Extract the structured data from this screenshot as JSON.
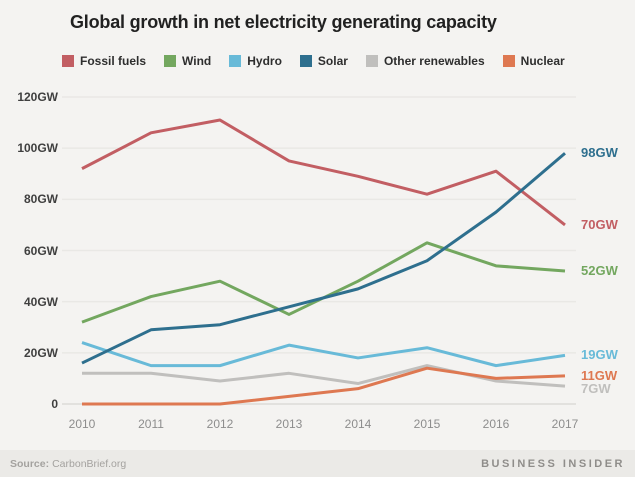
{
  "title": "Global growth in net electricity generating capacity",
  "footer": {
    "source_label": "Source:",
    "source_value": "CarbonBrief.org",
    "brand": "BUSINESS INSIDER"
  },
  "chart_data": {
    "type": "line",
    "title": "Global growth in net electricity generating capacity",
    "x": [
      2010,
      2011,
      2012,
      2013,
      2014,
      2015,
      2016,
      2017
    ],
    "series": [
      {
        "name": "Fossil fuels",
        "color": "#c25e63",
        "values": [
          92,
          106,
          111,
          95,
          89,
          82,
          91,
          70
        ],
        "end_label": "70GW"
      },
      {
        "name": "Wind",
        "color": "#73a75f",
        "values": [
          32,
          42,
          48,
          35,
          48,
          63,
          54,
          52
        ],
        "end_label": "52GW"
      },
      {
        "name": "Hydro",
        "color": "#68bad8",
        "values": [
          24,
          15,
          15,
          23,
          18,
          22,
          15,
          19
        ],
        "end_label": "19GW"
      },
      {
        "name": "Solar",
        "color": "#2e6f8e",
        "values": [
          16,
          29,
          31,
          38,
          45,
          56,
          75,
          98
        ],
        "end_label": "98GW"
      },
      {
        "name": "Other renewables",
        "color": "#c0bfbd",
        "values": [
          12,
          12,
          9,
          12,
          8,
          15,
          9,
          7
        ],
        "end_label": "7GW"
      },
      {
        "name": "Nuclear",
        "color": "#de7851",
        "values": [
          0,
          0,
          0,
          3,
          6,
          14,
          10,
          11
        ],
        "end_label": "11GW"
      }
    ],
    "yticks": [
      0,
      20,
      40,
      60,
      80,
      100,
      120
    ],
    "ytick_suffix": "GW",
    "ylim": [
      0,
      120
    ],
    "grid": true,
    "legend_position": "top",
    "unit": "GW"
  }
}
